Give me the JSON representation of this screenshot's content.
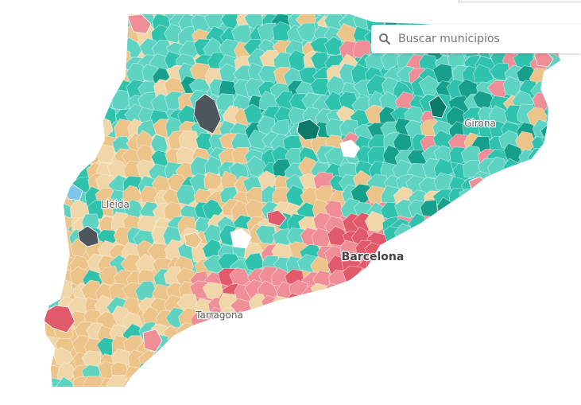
{
  "search": {
    "placeholder": "Buscar municipios",
    "value": ""
  },
  "map": {
    "icon": "search-icon",
    "cities": [
      {
        "id": "girona",
        "name": "Girona",
        "size": "medium"
      },
      {
        "id": "lleida",
        "name": "Lleida",
        "size": "medium"
      },
      {
        "id": "barcelona",
        "name": "Barcelona",
        "size": "large"
      },
      {
        "id": "tarragona",
        "name": "Tarragona",
        "size": "medium"
      }
    ],
    "colors": {
      "teal_light": "#5fd3c2",
      "teal": "#2fc2ad",
      "teal_dark": "#16a08b",
      "teal_darkest": "#0b7a68",
      "sand": "#ecc48a",
      "sand_light": "#f1d6a7",
      "pink": "#ef8e96",
      "red": "#e15a6b",
      "dark_gray": "#4c565c",
      "light_blue": "#7ec6ea",
      "border": "#ffffff"
    }
  }
}
